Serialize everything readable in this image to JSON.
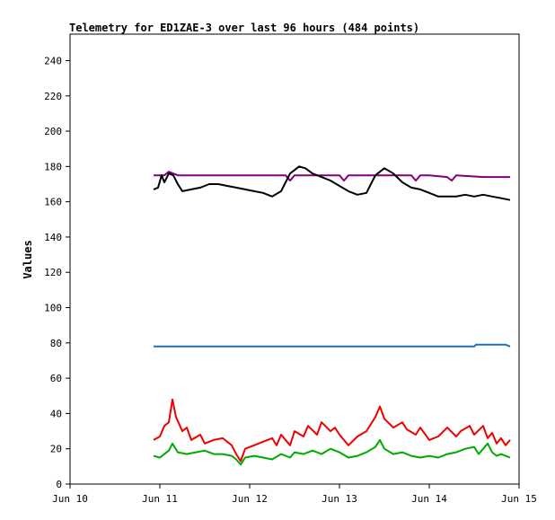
{
  "chart_data": {
    "type": "line",
    "title": "Telemetry for ED1ZAE-3 over last 96 hours (484 points)",
    "xlabel": "",
    "ylabel": "Values",
    "x_tick_labels": [
      "Jun 10",
      "Jun 11",
      "Jun 12",
      "Jun 13",
      "Jun 14",
      "Jun 15"
    ],
    "x_ticks": [
      10,
      11,
      12,
      13,
      14,
      15
    ],
    "xlim": [
      10,
      15
    ],
    "ylim": [
      0,
      255
    ],
    "y_ticks": [
      0,
      20,
      40,
      60,
      80,
      100,
      120,
      140,
      160,
      180,
      200,
      220,
      240
    ],
    "grid": false,
    "legend": "none",
    "series": [
      {
        "color": "#800080",
        "points": [
          [
            10.93,
            175
          ],
          [
            11.05,
            175
          ],
          [
            11.1,
            177
          ],
          [
            11.2,
            175
          ],
          [
            11.4,
            175
          ],
          [
            11.6,
            175
          ],
          [
            11.8,
            175
          ],
          [
            12.0,
            175
          ],
          [
            12.2,
            175
          ],
          [
            12.4,
            175
          ],
          [
            12.45,
            172
          ],
          [
            12.5,
            175
          ],
          [
            12.8,
            175
          ],
          [
            13.0,
            175
          ],
          [
            13.05,
            172
          ],
          [
            13.1,
            175
          ],
          [
            13.4,
            175
          ],
          [
            13.6,
            175
          ],
          [
            13.8,
            175
          ],
          [
            13.85,
            172
          ],
          [
            13.9,
            175
          ],
          [
            14.0,
            175
          ],
          [
            14.2,
            174
          ],
          [
            14.25,
            172
          ],
          [
            14.3,
            175
          ],
          [
            14.6,
            174
          ],
          [
            14.9,
            174
          ]
        ]
      },
      {
        "color": "#000000",
        "points": [
          [
            10.93,
            167
          ],
          [
            10.98,
            168
          ],
          [
            11.02,
            175
          ],
          [
            11.05,
            171
          ],
          [
            11.1,
            176
          ],
          [
            11.15,
            175
          ],
          [
            11.2,
            170
          ],
          [
            11.25,
            166
          ],
          [
            11.35,
            167
          ],
          [
            11.45,
            168
          ],
          [
            11.55,
            170
          ],
          [
            11.65,
            170
          ],
          [
            11.75,
            169
          ],
          [
            11.85,
            168
          ],
          [
            11.95,
            167
          ],
          [
            12.05,
            166
          ],
          [
            12.15,
            165
          ],
          [
            12.25,
            163
          ],
          [
            12.35,
            166
          ],
          [
            12.45,
            176
          ],
          [
            12.55,
            180
          ],
          [
            12.62,
            179
          ],
          [
            12.7,
            176
          ],
          [
            12.8,
            174
          ],
          [
            12.9,
            172
          ],
          [
            13.0,
            169
          ],
          [
            13.1,
            166
          ],
          [
            13.2,
            164
          ],
          [
            13.3,
            165
          ],
          [
            13.4,
            175
          ],
          [
            13.5,
            179
          ],
          [
            13.6,
            176
          ],
          [
            13.7,
            171
          ],
          [
            13.8,
            168
          ],
          [
            13.9,
            167
          ],
          [
            14.0,
            165
          ],
          [
            14.1,
            163
          ],
          [
            14.2,
            163
          ],
          [
            14.3,
            163
          ],
          [
            14.4,
            164
          ],
          [
            14.5,
            163
          ],
          [
            14.6,
            164
          ],
          [
            14.7,
            163
          ],
          [
            14.8,
            162
          ],
          [
            14.9,
            161
          ]
        ]
      },
      {
        "color": "#1f6fb4",
        "points": [
          [
            10.93,
            78
          ],
          [
            11.5,
            78
          ],
          [
            12.0,
            78
          ],
          [
            12.5,
            78
          ],
          [
            13.0,
            78
          ],
          [
            13.5,
            78
          ],
          [
            14.0,
            78
          ],
          [
            14.5,
            78
          ],
          [
            14.52,
            79
          ],
          [
            14.85,
            79
          ],
          [
            14.9,
            78
          ]
        ]
      },
      {
        "color": "#ee0000",
        "points": [
          [
            10.93,
            25
          ],
          [
            11.0,
            27
          ],
          [
            11.05,
            33
          ],
          [
            11.1,
            35
          ],
          [
            11.14,
            48
          ],
          [
            11.18,
            38
          ],
          [
            11.25,
            30
          ],
          [
            11.3,
            32
          ],
          [
            11.35,
            25
          ],
          [
            11.45,
            28
          ],
          [
            11.5,
            23
          ],
          [
            11.6,
            25
          ],
          [
            11.7,
            26
          ],
          [
            11.8,
            22
          ],
          [
            11.85,
            17
          ],
          [
            11.9,
            13
          ],
          [
            11.95,
            20
          ],
          [
            12.05,
            22
          ],
          [
            12.15,
            24
          ],
          [
            12.25,
            26
          ],
          [
            12.3,
            22
          ],
          [
            12.35,
            28
          ],
          [
            12.45,
            22
          ],
          [
            12.5,
            30
          ],
          [
            12.6,
            27
          ],
          [
            12.65,
            33
          ],
          [
            12.75,
            28
          ],
          [
            12.8,
            35
          ],
          [
            12.9,
            30
          ],
          [
            12.95,
            32
          ],
          [
            13.0,
            28
          ],
          [
            13.1,
            22
          ],
          [
            13.2,
            27
          ],
          [
            13.3,
            30
          ],
          [
            13.4,
            38
          ],
          [
            13.45,
            44
          ],
          [
            13.5,
            37
          ],
          [
            13.6,
            32
          ],
          [
            13.7,
            35
          ],
          [
            13.75,
            31
          ],
          [
            13.85,
            28
          ],
          [
            13.9,
            32
          ],
          [
            14.0,
            25
          ],
          [
            14.1,
            27
          ],
          [
            14.2,
            32
          ],
          [
            14.3,
            27
          ],
          [
            14.35,
            30
          ],
          [
            14.45,
            33
          ],
          [
            14.5,
            28
          ],
          [
            14.6,
            33
          ],
          [
            14.65,
            26
          ],
          [
            14.7,
            29
          ],
          [
            14.75,
            23
          ],
          [
            14.8,
            26
          ],
          [
            14.85,
            22
          ],
          [
            14.9,
            25
          ]
        ]
      },
      {
        "color": "#00aa00",
        "points": [
          [
            10.93,
            16
          ],
          [
            11.0,
            15
          ],
          [
            11.05,
            17
          ],
          [
            11.1,
            19
          ],
          [
            11.14,
            23
          ],
          [
            11.2,
            18
          ],
          [
            11.3,
            17
          ],
          [
            11.4,
            18
          ],
          [
            11.5,
            19
          ],
          [
            11.6,
            17
          ],
          [
            11.7,
            17
          ],
          [
            11.8,
            16
          ],
          [
            11.85,
            14
          ],
          [
            11.9,
            11
          ],
          [
            11.95,
            15
          ],
          [
            12.05,
            16
          ],
          [
            12.15,
            15
          ],
          [
            12.25,
            14
          ],
          [
            12.35,
            17
          ],
          [
            12.45,
            15
          ],
          [
            12.5,
            18
          ],
          [
            12.6,
            17
          ],
          [
            12.7,
            19
          ],
          [
            12.8,
            17
          ],
          [
            12.9,
            20
          ],
          [
            13.0,
            18
          ],
          [
            13.1,
            15
          ],
          [
            13.2,
            16
          ],
          [
            13.3,
            18
          ],
          [
            13.4,
            21
          ],
          [
            13.45,
            25
          ],
          [
            13.5,
            20
          ],
          [
            13.6,
            17
          ],
          [
            13.7,
            18
          ],
          [
            13.8,
            16
          ],
          [
            13.9,
            15
          ],
          [
            14.0,
            16
          ],
          [
            14.1,
            15
          ],
          [
            14.2,
            17
          ],
          [
            14.3,
            18
          ],
          [
            14.4,
            20
          ],
          [
            14.5,
            21
          ],
          [
            14.55,
            17
          ],
          [
            14.6,
            20
          ],
          [
            14.65,
            23
          ],
          [
            14.7,
            18
          ],
          [
            14.75,
            16
          ],
          [
            14.8,
            17
          ],
          [
            14.9,
            15
          ]
        ]
      }
    ]
  }
}
